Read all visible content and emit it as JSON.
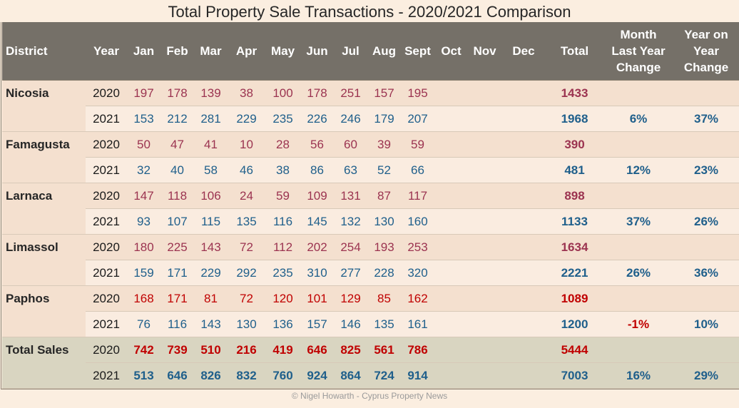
{
  "title": "Total Property Sale Transactions - 2020/2021 Comparison",
  "headers": {
    "district": "District",
    "year": "Year",
    "months": [
      "Jan",
      "Feb",
      "Mar",
      "Apr",
      "May",
      "Jun",
      "Jul",
      "Aug",
      "Sept",
      "Oct",
      "Nov",
      "Dec"
    ],
    "total": "Total",
    "month_change_l1": "Month",
    "month_change_l2": "Last Year",
    "month_change_l3": "Change",
    "year_change_l1": "Year on",
    "year_change_l2": "Year",
    "year_change_l3": "Change"
  },
  "districts": [
    {
      "name": "Nicosia",
      "rows": [
        {
          "year": "2020",
          "values": [
            "197",
            "178",
            "139",
            "38",
            "100",
            "178",
            "251",
            "157",
            "195"
          ],
          "total": "1433",
          "month_change": "",
          "year_change": ""
        },
        {
          "year": "2021",
          "values": [
            "153",
            "212",
            "281",
            "229",
            "235",
            "226",
            "246",
            "179",
            "207"
          ],
          "total": "1968",
          "month_change": "6%",
          "year_change": "37%"
        }
      ]
    },
    {
      "name": "Famagusta",
      "rows": [
        {
          "year": "2020",
          "values": [
            "50",
            "47",
            "41",
            "10",
            "28",
            "56",
            "60",
            "39",
            "59"
          ],
          "total": "390",
          "month_change": "",
          "year_change": ""
        },
        {
          "year": "2021",
          "values": [
            "32",
            "40",
            "58",
            "46",
            "38",
            "86",
            "63",
            "52",
            "66"
          ],
          "total": "481",
          "month_change": "12%",
          "year_change": "23%"
        }
      ]
    },
    {
      "name": "Larnaca",
      "rows": [
        {
          "year": "2020",
          "values": [
            "147",
            "118",
            "106",
            "24",
            "59",
            "109",
            "131",
            "87",
            "117"
          ],
          "total": "898",
          "month_change": "",
          "year_change": ""
        },
        {
          "year": "2021",
          "values": [
            "93",
            "107",
            "115",
            "135",
            "116",
            "145",
            "132",
            "130",
            "160"
          ],
          "total": "1133",
          "month_change": "37%",
          "year_change": "26%"
        }
      ]
    },
    {
      "name": "Limassol",
      "rows": [
        {
          "year": "2020",
          "values": [
            "180",
            "225",
            "143",
            "72",
            "112",
            "202",
            "254",
            "193",
            "253"
          ],
          "total": "1634",
          "month_change": "",
          "year_change": ""
        },
        {
          "year": "2021",
          "values": [
            "159",
            "171",
            "229",
            "292",
            "235",
            "310",
            "277",
            "228",
            "320"
          ],
          "total": "2221",
          "month_change": "26%",
          "year_change": "36%"
        }
      ]
    },
    {
      "name": "Paphos",
      "rows": [
        {
          "year": "2020",
          "values": [
            "168",
            "171",
            "81",
            "72",
            "120",
            "101",
            "129",
            "85",
            "162"
          ],
          "total": "1089",
          "month_change": "",
          "year_change": ""
        },
        {
          "year": "2021",
          "values": [
            "76",
            "116",
            "143",
            "130",
            "136",
            "157",
            "146",
            "135",
            "161"
          ],
          "total": "1200",
          "month_change": "-1%",
          "year_change": "10%"
        }
      ]
    },
    {
      "name": "Total Sales",
      "rows": [
        {
          "year": "2020",
          "values": [
            "742",
            "739",
            "510",
            "216",
            "419",
            "646",
            "825",
            "561",
            "786"
          ],
          "total": "5444",
          "month_change": "",
          "year_change": ""
        },
        {
          "year": "2021",
          "values": [
            "513",
            "646",
            "826",
            "832",
            "760",
            "924",
            "864",
            "724",
            "914"
          ],
          "total": "7003",
          "month_change": "16%",
          "year_change": "29%"
        }
      ]
    }
  ],
  "footer": "© Nigel Howarth - Cyprus Property News"
}
